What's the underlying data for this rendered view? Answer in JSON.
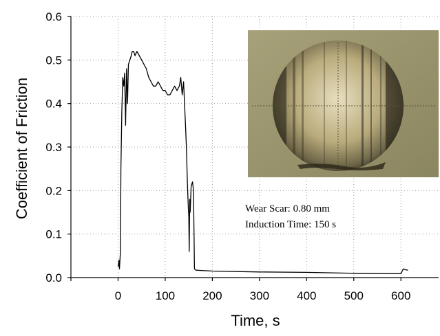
{
  "chart_data": {
    "type": "line",
    "title": "",
    "xlabel": "Time, s",
    "ylabel": "Coefficient of Friction",
    "xlim": [
      -100,
      680
    ],
    "ylim": [
      0,
      0.6
    ],
    "x_ticks": [
      0,
      100,
      200,
      300,
      400,
      500,
      600
    ],
    "y_ticks": [
      "0.0",
      "0.1",
      "0.2",
      "0.3",
      "0.4",
      "0.5",
      "0.6"
    ],
    "grid": true,
    "annotations": [
      "Wear Scar: 0.80 mm",
      "Induction Time: 150 s"
    ],
    "inset_image": "wear-scar-micrograph",
    "series": [
      {
        "x": [
          0,
          2,
          3,
          5,
          6,
          8,
          10,
          12,
          14,
          16,
          18,
          20,
          22,
          25,
          28,
          30,
          33,
          36,
          40,
          45,
          50,
          55,
          60,
          65,
          70,
          75,
          80,
          85,
          90,
          95,
          100,
          105,
          110,
          115,
          120,
          125,
          130,
          133,
          136,
          139,
          141,
          143,
          145,
          147,
          149,
          150,
          151,
          152,
          153,
          155,
          158,
          160,
          162,
          165,
          200,
          300,
          400,
          500,
          600,
          605,
          610,
          615
        ],
        "y": [
          0.025,
          0.04,
          0.02,
          0.06,
          0.25,
          0.38,
          0.46,
          0.44,
          0.47,
          0.35,
          0.48,
          0.4,
          0.49,
          0.5,
          0.51,
          0.52,
          0.52,
          0.51,
          0.52,
          0.51,
          0.5,
          0.49,
          0.48,
          0.46,
          0.45,
          0.44,
          0.44,
          0.45,
          0.44,
          0.43,
          0.43,
          0.42,
          0.42,
          0.43,
          0.44,
          0.43,
          0.44,
          0.46,
          0.42,
          0.45,
          0.4,
          0.35,
          0.3,
          0.22,
          0.16,
          0.14,
          0.06,
          0.18,
          0.15,
          0.21,
          0.22,
          0.2,
          0.02,
          0.017,
          0.015,
          0.013,
          0.012,
          0.01,
          0.009,
          0.02,
          0.018,
          0.017
        ]
      }
    ]
  }
}
